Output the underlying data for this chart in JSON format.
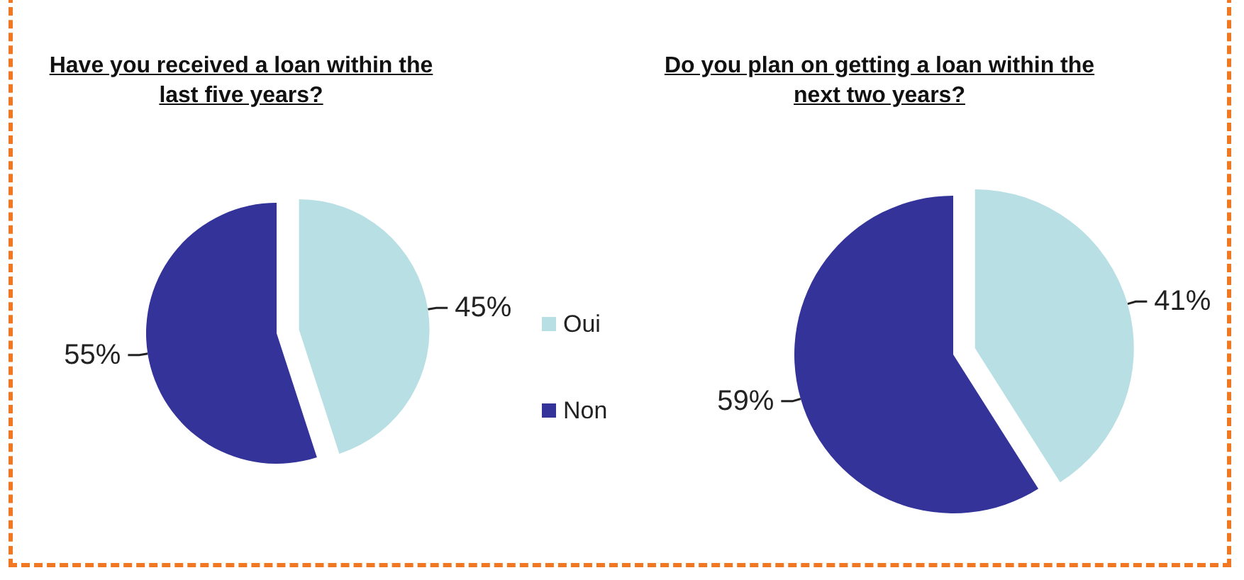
{
  "chart_data": [
    {
      "type": "pie",
      "title": "Have you received a loan within the last five years?",
      "categories": [
        "Oui",
        "Non"
      ],
      "values": [
        45,
        55
      ],
      "colors": [
        "#b8e0e4",
        "#333399"
      ],
      "value_labels": [
        "45%",
        "55%"
      ],
      "legend": "right"
    },
    {
      "type": "pie",
      "title": "Do you plan on getting a loan within the next two years?",
      "categories": [
        null,
        null
      ],
      "values": [
        41,
        59
      ],
      "colors": [
        "#b8e0e4",
        "#333399"
      ],
      "value_labels": [
        "41%",
        "59%"
      ]
    }
  ]
}
